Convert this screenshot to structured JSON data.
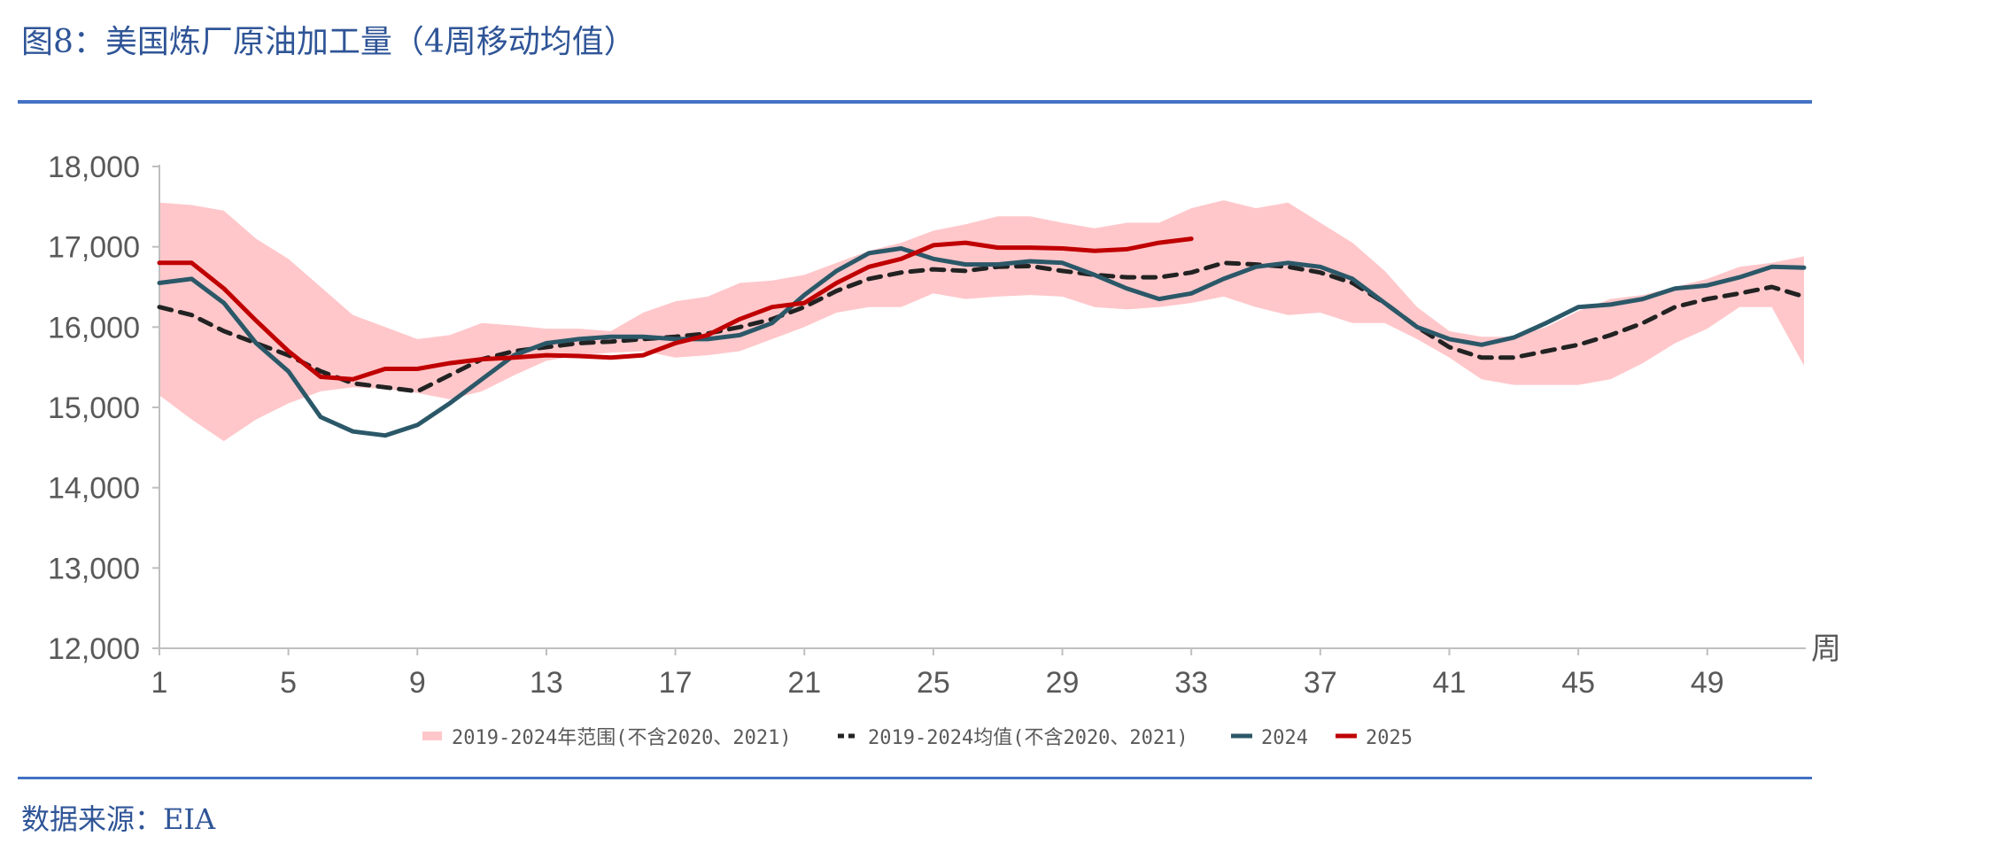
{
  "title": "图8：美国炼厂原油加工量（4周移动均值）",
  "source": "数据来源：EIA",
  "colors": {
    "title": "#2F5597",
    "rule": "#4472C4",
    "range_band": "#FFC7CA",
    "mean": "#222222",
    "s2024": "#2B5868",
    "s2025": "#C00000",
    "axis": "#BFBFBF",
    "tick_text": "#595959"
  },
  "chart_data": {
    "type": "line",
    "xlabel": "周",
    "ylabel": "",
    "xlim": [
      1,
      52
    ],
    "ylim": [
      12000,
      18000
    ],
    "y_ticks": [
      "12,000",
      "13,000",
      "14,000",
      "15,000",
      "16,000",
      "17,000",
      "18,000"
    ],
    "y_tick_values": [
      12000,
      13000,
      14000,
      15000,
      16000,
      17000,
      18000
    ],
    "x_ticks": [
      "1",
      "5",
      "9",
      "13",
      "17",
      "21",
      "25",
      "29",
      "33",
      "37",
      "41",
      "45",
      "49"
    ],
    "x_tick_values": [
      1,
      5,
      9,
      13,
      17,
      21,
      25,
      29,
      33,
      37,
      41,
      45,
      49
    ],
    "grid": false,
    "legend_position": "bottom",
    "range": {
      "name": "2019-2024年范围(不含2020、2021)",
      "x": [
        1,
        2,
        3,
        4,
        5,
        6,
        7,
        8,
        9,
        10,
        11,
        12,
        13,
        14,
        15,
        16,
        17,
        18,
        19,
        20,
        21,
        22,
        23,
        24,
        25,
        26,
        27,
        28,
        29,
        30,
        31,
        32,
        33,
        34,
        35,
        36,
        37,
        38,
        39,
        40,
        41,
        42,
        43,
        44,
        45,
        46,
        47,
        48,
        49,
        50,
        51,
        52
      ],
      "low": [
        15150,
        14850,
        14580,
        14850,
        15050,
        15200,
        15250,
        15230,
        15180,
        15100,
        15200,
        15400,
        15580,
        15650,
        15680,
        15700,
        15620,
        15650,
        15700,
        15850,
        16000,
        16180,
        16250,
        16250,
        16420,
        16350,
        16380,
        16400,
        16380,
        16250,
        16220,
        16250,
        16300,
        16380,
        16250,
        16150,
        16180,
        16050,
        16050,
        15850,
        15620,
        15350,
        15280,
        15280,
        15280,
        15350,
        15550,
        15800,
        15980,
        16250,
        16250,
        15520
      ],
      "high": [
        17550,
        17520,
        17450,
        17100,
        16850,
        16500,
        16150,
        16000,
        15850,
        15900,
        16050,
        16020,
        15980,
        15980,
        15950,
        16180,
        16320,
        16380,
        16550,
        16580,
        16650,
        16800,
        16950,
        17050,
        17200,
        17280,
        17380,
        17380,
        17300,
        17230,
        17300,
        17300,
        17480,
        17580,
        17480,
        17550,
        17300,
        17050,
        16700,
        16250,
        15950,
        15880,
        15880,
        16000,
        16200,
        16350,
        16400,
        16500,
        16600,
        16750,
        16800,
        16880
      ]
    },
    "series": [
      {
        "name": "2019-2024均值(不含2020、2021)",
        "style": "dashed",
        "x": [
          1,
          2,
          3,
          4,
          5,
          6,
          7,
          8,
          9,
          10,
          11,
          12,
          13,
          14,
          15,
          16,
          17,
          18,
          19,
          20,
          21,
          22,
          23,
          24,
          25,
          26,
          27,
          28,
          29,
          30,
          31,
          32,
          33,
          34,
          35,
          36,
          37,
          38,
          39,
          40,
          41,
          42,
          43,
          44,
          45,
          46,
          47,
          48,
          49,
          50,
          51,
          52
        ],
        "values": [
          16250,
          16150,
          15950,
          15800,
          15650,
          15450,
          15300,
          15250,
          15200,
          15400,
          15600,
          15700,
          15750,
          15800,
          15820,
          15850,
          15880,
          15920,
          16000,
          16100,
          16250,
          16450,
          16600,
          16680,
          16720,
          16700,
          16750,
          16760,
          16700,
          16650,
          16620,
          16620,
          16680,
          16800,
          16780,
          16750,
          16680,
          16550,
          16300,
          16000,
          15750,
          15620,
          15620,
          15700,
          15780,
          15900,
          16050,
          16250,
          16350,
          16420,
          16500,
          16380
        ]
      },
      {
        "name": "2024",
        "style": "solid",
        "x": [
          1,
          2,
          3,
          4,
          5,
          6,
          7,
          8,
          9,
          10,
          11,
          12,
          13,
          14,
          15,
          16,
          17,
          18,
          19,
          20,
          21,
          22,
          23,
          24,
          25,
          26,
          27,
          28,
          29,
          30,
          31,
          32,
          33,
          34,
          35,
          36,
          37,
          38,
          39,
          40,
          41,
          42,
          43,
          44,
          45,
          46,
          47,
          48,
          49,
          50,
          51,
          52
        ],
        "values": [
          16550,
          16600,
          16300,
          15800,
          15450,
          14880,
          14700,
          14650,
          14780,
          15050,
          15350,
          15650,
          15800,
          15850,
          15880,
          15880,
          15850,
          15850,
          15900,
          16050,
          16400,
          16700,
          16920,
          16980,
          16850,
          16780,
          16780,
          16820,
          16800,
          16650,
          16480,
          16350,
          16420,
          16600,
          16750,
          16800,
          16750,
          16600,
          16300,
          16000,
          15850,
          15780,
          15870,
          16050,
          16250,
          16280,
          16350,
          16480,
          16520,
          16620,
          16750,
          16740
        ]
      },
      {
        "name": "2025",
        "style": "solid",
        "x": [
          1,
          2,
          3,
          4,
          5,
          6,
          7,
          8,
          9,
          10,
          11,
          12,
          13,
          14,
          15,
          16,
          17,
          18,
          19,
          20,
          21,
          22,
          23,
          24,
          25,
          26,
          27,
          28,
          29,
          30,
          31,
          32,
          33
        ],
        "values": [
          16800,
          16800,
          16480,
          16080,
          15700,
          15380,
          15350,
          15480,
          15480,
          15550,
          15600,
          15620,
          15650,
          15640,
          15620,
          15650,
          15800,
          15900,
          16100,
          16250,
          16300,
          16550,
          16750,
          16850,
          17020,
          17050,
          16990,
          16990,
          16980,
          16950,
          16970,
          17050,
          17100
        ]
      }
    ]
  },
  "legend": {
    "range": "2019-2024年范围(不含2020、2021)",
    "mean": "2019-2024均值(不含2020、2021)",
    "s2024": "2024",
    "s2025": "2025"
  }
}
